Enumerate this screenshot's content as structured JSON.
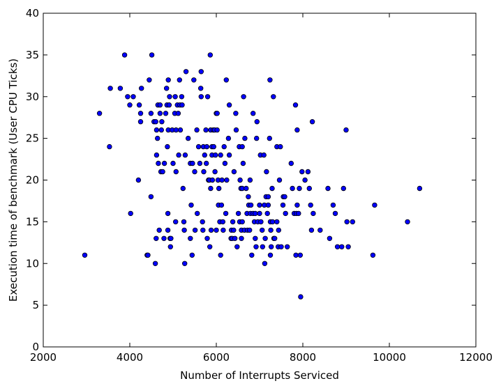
{
  "chart_data": {
    "type": "scatter",
    "title": "",
    "xlabel": "Number of Interrupts Serviced",
    "ylabel": "Execution time of benchmark (User CPU Ticks)",
    "xlim": [
      2000,
      12000
    ],
    "ylim": [
      0,
      40
    ],
    "xticks": [
      2000,
      4000,
      6000,
      8000,
      10000,
      12000
    ],
    "yticks": [
      0,
      5,
      10,
      15,
      20,
      25,
      30,
      35,
      40
    ],
    "grid": false,
    "marker_color": "#0000ff",
    "marker_edge_color": "#000000",
    "points": [
      [
        2960,
        11
      ],
      [
        3300,
        28
      ],
      [
        3530,
        24
      ],
      [
        3550,
        31
      ],
      [
        3780,
        31
      ],
      [
        3880,
        35
      ],
      [
        3950,
        30
      ],
      [
        4000,
        29
      ],
      [
        4020,
        16
      ],
      [
        4080,
        30
      ],
      [
        4200,
        20
      ],
      [
        4220,
        29
      ],
      [
        4250,
        28
      ],
      [
        4250,
        27
      ],
      [
        4270,
        31
      ],
      [
        4400,
        11
      ],
      [
        4420,
        11
      ],
      [
        4450,
        32
      ],
      [
        4490,
        18
      ],
      [
        4490,
        28
      ],
      [
        4510,
        35
      ],
      [
        4560,
        27
      ],
      [
        4590,
        10
      ],
      [
        4600,
        27
      ],
      [
        4610,
        13
      ],
      [
        4620,
        26
      ],
      [
        4620,
        23
      ],
      [
        4640,
        25
      ],
      [
        4650,
        29
      ],
      [
        4660,
        22
      ],
      [
        4680,
        14
      ],
      [
        4700,
        29
      ],
      [
        4700,
        28
      ],
      [
        4720,
        21
      ],
      [
        4730,
        26
      ],
      [
        4740,
        27
      ],
      [
        4760,
        21
      ],
      [
        4790,
        13
      ],
      [
        4800,
        22
      ],
      [
        4830,
        28
      ],
      [
        4850,
        31
      ],
      [
        4860,
        29
      ],
      [
        4870,
        24
      ],
      [
        4880,
        16
      ],
      [
        4880,
        14
      ],
      [
        4890,
        32
      ],
      [
        4890,
        26
      ],
      [
        4910,
        29
      ],
      [
        4920,
        30
      ],
      [
        4930,
        13
      ],
      [
        4940,
        12
      ],
      [
        4950,
        13
      ],
      [
        4980,
        26
      ],
      [
        5000,
        22
      ],
      [
        5040,
        28
      ],
      [
        5050,
        30
      ],
      [
        5060,
        15
      ],
      [
        5070,
        26
      ],
      [
        5070,
        21
      ],
      [
        5100,
        29
      ],
      [
        5120,
        28
      ],
      [
        5130,
        23
      ],
      [
        5150,
        32
      ],
      [
        5160,
        29
      ],
      [
        5170,
        26
      ],
      [
        5200,
        30
      ],
      [
        5210,
        29
      ],
      [
        5230,
        19
      ],
      [
        5250,
        15
      ],
      [
        5260,
        14
      ],
      [
        5270,
        10
      ],
      [
        5280,
        23
      ],
      [
        5300,
        33
      ],
      [
        5350,
        25
      ],
      [
        5400,
        13
      ],
      [
        5400,
        22
      ],
      [
        5420,
        17
      ],
      [
        5440,
        11
      ],
      [
        5450,
        22
      ],
      [
        5480,
        32
      ],
      [
        5500,
        21
      ],
      [
        5510,
        14
      ],
      [
        5550,
        26
      ],
      [
        5560,
        16
      ],
      [
        5590,
        24
      ],
      [
        5620,
        22
      ],
      [
        5640,
        31
      ],
      [
        5650,
        30
      ],
      [
        5650,
        33
      ],
      [
        5680,
        15
      ],
      [
        5690,
        14
      ],
      [
        5700,
        24
      ],
      [
        5710,
        21
      ],
      [
        5730,
        23
      ],
      [
        5760,
        26
      ],
      [
        5770,
        22
      ],
      [
        5780,
        24
      ],
      [
        5790,
        13
      ],
      [
        5800,
        30
      ],
      [
        5820,
        20
      ],
      [
        5840,
        20
      ],
      [
        5850,
        12
      ],
      [
        5860,
        35
      ],
      [
        5870,
        19
      ],
      [
        5870,
        26
      ],
      [
        5880,
        14
      ],
      [
        5900,
        24
      ],
      [
        5900,
        23
      ],
      [
        5910,
        20
      ],
      [
        5930,
        26
      ],
      [
        5940,
        24
      ],
      [
        5960,
        26
      ],
      [
        5970,
        21
      ],
      [
        5980,
        23
      ],
      [
        6000,
        28
      ],
      [
        6000,
        14
      ],
      [
        6020,
        28
      ],
      [
        6020,
        26
      ],
      [
        6040,
        20
      ],
      [
        6050,
        17
      ],
      [
        6060,
        19
      ],
      [
        6080,
        15
      ],
      [
        6100,
        23
      ],
      [
        6100,
        11
      ],
      [
        6120,
        17
      ],
      [
        6130,
        20
      ],
      [
        6150,
        15
      ],
      [
        6160,
        14
      ],
      [
        6180,
        24
      ],
      [
        6200,
        22
      ],
      [
        6220,
        16
      ],
      [
        6230,
        32
      ],
      [
        6240,
        20
      ],
      [
        6280,
        25
      ],
      [
        6300,
        29
      ],
      [
        6300,
        23
      ],
      [
        6340,
        13
      ],
      [
        6350,
        14
      ],
      [
        6370,
        13
      ],
      [
        6380,
        15
      ],
      [
        6400,
        14
      ],
      [
        6410,
        21
      ],
      [
        6430,
        13
      ],
      [
        6450,
        28
      ],
      [
        6460,
        26
      ],
      [
        6480,
        12
      ],
      [
        6510,
        16
      ],
      [
        6530,
        24
      ],
      [
        6540,
        15
      ],
      [
        6550,
        20
      ],
      [
        6570,
        19
      ],
      [
        6580,
        14
      ],
      [
        6580,
        13
      ],
      [
        6600,
        24
      ],
      [
        6600,
        15
      ],
      [
        6600,
        19
      ],
      [
        6620,
        22
      ],
      [
        6630,
        30
      ],
      [
        6650,
        14
      ],
      [
        6660,
        25
      ],
      [
        6690,
        19
      ],
      [
        6710,
        16
      ],
      [
        6720,
        14
      ],
      [
        6740,
        18
      ],
      [
        6750,
        17
      ],
      [
        6770,
        14
      ],
      [
        6780,
        20
      ],
      [
        6790,
        16
      ],
      [
        6800,
        17
      ],
      [
        6820,
        11
      ],
      [
        6850,
        28
      ],
      [
        6850,
        16
      ],
      [
        6880,
        15
      ],
      [
        6900,
        16
      ],
      [
        6900,
        13
      ],
      [
        6920,
        12
      ],
      [
        6930,
        25
      ],
      [
        6940,
        27
      ],
      [
        6960,
        15
      ],
      [
        7000,
        17
      ],
      [
        7000,
        16
      ],
      [
        7020,
        23
      ],
      [
        7030,
        15
      ],
      [
        7060,
        14
      ],
      [
        7070,
        12
      ],
      [
        7100,
        23
      ],
      [
        7110,
        17
      ],
      [
        7120,
        10
      ],
      [
        7130,
        13
      ],
      [
        7150,
        18
      ],
      [
        7160,
        21
      ],
      [
        7180,
        16
      ],
      [
        7200,
        18
      ],
      [
        7200,
        17
      ],
      [
        7230,
        25
      ],
      [
        7240,
        32
      ],
      [
        7250,
        15
      ],
      [
        7250,
        11
      ],
      [
        7260,
        14
      ],
      [
        7270,
        12
      ],
      [
        7290,
        19
      ],
      [
        7300,
        15
      ],
      [
        7320,
        30
      ],
      [
        7330,
        13
      ],
      [
        7350,
        13
      ],
      [
        7400,
        15
      ],
      [
        7400,
        24
      ],
      [
        7430,
        12
      ],
      [
        7440,
        14
      ],
      [
        7460,
        20
      ],
      [
        7480,
        24
      ],
      [
        7500,
        12
      ],
      [
        7540,
        17
      ],
      [
        7550,
        18
      ],
      [
        7580,
        18
      ],
      [
        7600,
        16
      ],
      [
        7640,
        12
      ],
      [
        7730,
        22
      ],
      [
        7760,
        19
      ],
      [
        7800,
        16
      ],
      [
        7830,
        29
      ],
      [
        7840,
        11
      ],
      [
        7850,
        16
      ],
      [
        7870,
        26
      ],
      [
        7870,
        17
      ],
      [
        7900,
        16
      ],
      [
        7920,
        19
      ],
      [
        7940,
        11
      ],
      [
        7950,
        6
      ],
      [
        7980,
        21
      ],
      [
        8050,
        20
      ],
      [
        8120,
        21
      ],
      [
        8150,
        19
      ],
      [
        8180,
        17
      ],
      [
        8200,
        14
      ],
      [
        8220,
        27
      ],
      [
        8240,
        16
      ],
      [
        8400,
        14
      ],
      [
        8580,
        19
      ],
      [
        8620,
        13
      ],
      [
        8700,
        17
      ],
      [
        8750,
        16
      ],
      [
        8800,
        12
      ],
      [
        8900,
        12
      ],
      [
        8940,
        19
      ],
      [
        9000,
        26
      ],
      [
        9020,
        15
      ],
      [
        9050,
        12
      ],
      [
        9150,
        15
      ],
      [
        9620,
        11
      ],
      [
        9660,
        17
      ],
      [
        10420,
        15
      ],
      [
        10700,
        19
      ]
    ]
  }
}
